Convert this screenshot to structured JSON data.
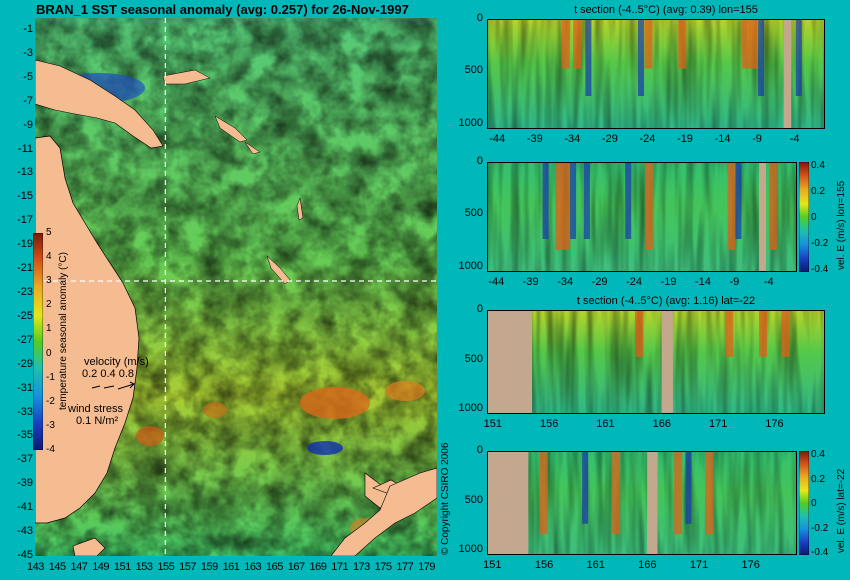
{
  "header": {
    "map_title": "BRAN_1 SST seasonal anomaly (avg: 0.257) for 26-Nov-1997"
  },
  "map": {
    "lat_ticks": [
      "-1",
      "-3",
      "-5",
      "-7",
      "-9",
      "-11",
      "-13",
      "-15",
      "-17",
      "-19",
      "-21",
      "-23",
      "-25",
      "-27",
      "-29",
      "-31",
      "-33",
      "-35",
      "-37",
      "-39",
      "-41",
      "-43",
      "-45"
    ],
    "lon_ticks": [
      "143",
      "145",
      "147",
      "149",
      "151",
      "153",
      "155",
      "157",
      "159",
      "161",
      "163",
      "165",
      "167",
      "169",
      "171",
      "173",
      "175",
      "177",
      "179"
    ],
    "colorbar_label": "temperature seasonal anomaly (°C)",
    "colorbar_ticks": [
      "5",
      "4",
      "3",
      "2",
      "1",
      "0",
      "-1",
      "-2",
      "-3",
      "-4"
    ],
    "velocity_label": "velocity (m/s)",
    "velocity_scale": "0.2 0.4 0.8",
    "wind_label": "wind stress",
    "wind_scale": "0.1 N/m²",
    "crosshair_lon": 155,
    "crosshair_lat": -22
  },
  "copyright": "© Copyright CSIRO 2006",
  "panels": [
    {
      "title": "t section (-4..5°C) (avg: 0.39) lon=155",
      "x_ticks": [
        "-44",
        "-39",
        "-34",
        "-29",
        "-24",
        "-19",
        "-14",
        "-9",
        "-4"
      ],
      "y_ticks": [
        "0",
        "500",
        "1000"
      ],
      "right_label": "",
      "cbar_ticks": []
    },
    {
      "title": "",
      "x_ticks": [
        "-44",
        "-39",
        "-34",
        "-29",
        "-24",
        "-19",
        "-14",
        "-9",
        "-4"
      ],
      "y_ticks": [
        "0",
        "500",
        "1000"
      ],
      "right_label": "vel. E (m/s) lon=155",
      "cbar_ticks": [
        "0.4",
        "0.2",
        "0",
        "-0.2",
        "-0.4"
      ]
    },
    {
      "title": "t section (-4..5°C) (avg: 1.16) lat=-22",
      "x_ticks": [
        "151",
        "156",
        "161",
        "166",
        "171",
        "176"
      ],
      "y_ticks": [
        "0",
        "500",
        "1000"
      ],
      "right_label": "",
      "cbar_ticks": []
    },
    {
      "title": "",
      "x_ticks": [
        "151",
        "156",
        "161",
        "166",
        "171",
        "176"
      ],
      "y_ticks": [
        "0",
        "500",
        "1000"
      ],
      "right_label": "vel. E (m/s) lat=-22",
      "cbar_ticks": [
        "0.4",
        "0.2",
        "0",
        "-0.2",
        "-0.4"
      ]
    }
  ],
  "chart_data": [
    {
      "type": "heatmap",
      "title": "BRAN_1 SST seasonal anomaly (avg: 0.257) for 26-Nov-1997",
      "xlabel": "",
      "ylabel": "",
      "xlim": [
        143,
        180
      ],
      "ylim": [
        -45,
        0
      ],
      "colorbar": {
        "label": "temperature seasonal anomaly (°C)",
        "range": [
          -4,
          5
        ]
      }
    },
    {
      "type": "heatmap",
      "title": "t section (-4..5°C) (avg: 0.39) lon=155",
      "x_ticks": [
        -44,
        -39,
        -34,
        -29,
        -24,
        -19,
        -14,
        -9,
        -4
      ],
      "y_ticks": [
        0,
        500,
        1000
      ],
      "ylim": [
        1050,
        0
      ],
      "warm_x": [
        -35,
        -33.5,
        -24,
        -19.5,
        -11,
        -10
      ],
      "cool_x": [
        -32,
        -25,
        -9,
        -4
      ]
    },
    {
      "type": "heatmap",
      "title": "",
      "right_label": "vel. E (m/s) lon=155",
      "range": [
        -0.4,
        0.4
      ],
      "x_ticks": [
        -44,
        -39,
        -34,
        -29,
        -24,
        -19,
        -14,
        -9,
        -4
      ],
      "y_ticks": [
        0,
        500,
        1000
      ],
      "warm_x": [
        -35,
        -34,
        -22,
        -10,
        -4
      ],
      "cool_x": [
        -37,
        -33,
        -31,
        -25,
        -9
      ]
    },
    {
      "type": "heatmap",
      "title": "t section (-4..5°C) (avg: 1.16) lat=-22",
      "x_ticks": [
        151,
        156,
        161,
        166,
        171,
        176
      ],
      "y_ticks": [
        0,
        500,
        1000
      ],
      "ylim": [
        1050,
        0
      ],
      "warm_x": [
        164,
        172,
        175,
        177
      ],
      "cool_x": []
    },
    {
      "type": "heatmap",
      "title": "",
      "right_label": "vel. E (m/s) lat=-22",
      "range": [
        -0.4,
        0.4
      ],
      "x_ticks": [
        151,
        156,
        161,
        166,
        171,
        176
      ],
      "y_ticks": [
        0,
        500,
        1000
      ],
      "warm_x": [
        156,
        163,
        169,
        172
      ],
      "cool_x": [
        160,
        170
      ]
    }
  ]
}
